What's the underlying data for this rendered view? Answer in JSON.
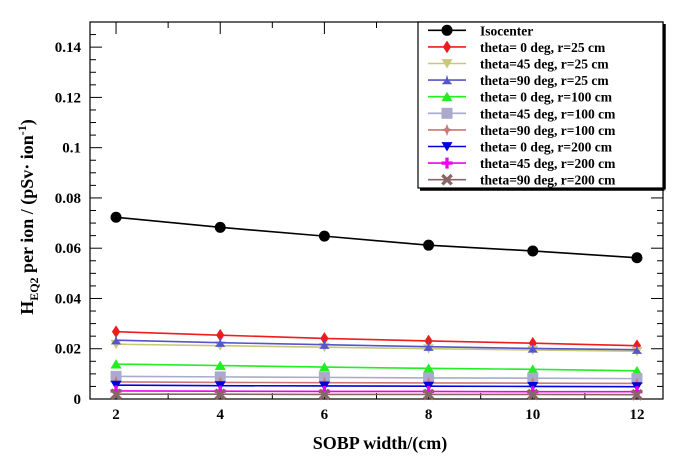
{
  "chart_data": {
    "type": "line",
    "xlabel": "SOBP width/(cm)",
    "ylabel": {
      "prefix": "H",
      "subscript": "EQ2",
      "middle": " per ion / (pSv",
      "dot": "·",
      "unit": " ion",
      "superscript": "-1",
      "suffix": ")"
    },
    "xlim": [
      1.5,
      12.5
    ],
    "ylim": [
      0,
      0.15
    ],
    "x_ticks": [
      "2",
      "4",
      "6",
      "8",
      "10",
      "12"
    ],
    "y_ticks": [
      "0",
      "0.02",
      "0.04",
      "0.06",
      "0.08",
      "0.1",
      "0.12",
      "0.14"
    ],
    "grid": false,
    "legend_position": "top-right",
    "x": [
      2,
      4,
      6,
      8,
      10,
      12
    ],
    "series": [
      {
        "name": "Isocenter",
        "color": "#000000",
        "marker": "circle",
        "values": [
          0.0723,
          0.0683,
          0.0648,
          0.0612,
          0.0589,
          0.0562
        ]
      },
      {
        "name": "theta= 0 deg, r=25 cm",
        "color": "#ee1c1c",
        "marker": "diamond",
        "values": [
          0.0268,
          0.0254,
          0.0241,
          0.0231,
          0.0222,
          0.0212
        ]
      },
      {
        "name": "theta=45 deg, r=25 cm",
        "color": "#c8c878",
        "marker": "triangle-down",
        "values": [
          0.0218,
          0.0212,
          0.0206,
          0.02,
          0.0195,
          0.019
        ]
      },
      {
        "name": "theta=90 deg, r=25 cm",
        "color": "#5555cc",
        "marker": "tristar",
        "values": [
          0.0234,
          0.0224,
          0.0216,
          0.0208,
          0.0201,
          0.0196
        ]
      },
      {
        "name": "theta= 0 deg, r=100 cm",
        "color": "#22ee22",
        "marker": "triangle-up",
        "values": [
          0.0139,
          0.0133,
          0.0127,
          0.0122,
          0.0118,
          0.0112
        ]
      },
      {
        "name": "theta=45 deg, r=100 cm",
        "color": "#aaaacc",
        "marker": "square",
        "values": [
          0.009,
          0.0088,
          0.0086,
          0.0084,
          0.0083,
          0.0081
        ]
      },
      {
        "name": "theta=90 deg, r=100 cm",
        "color": "#cc7777",
        "marker": "diamond-star",
        "values": [
          0.0068,
          0.0066,
          0.0065,
          0.0064,
          0.0063,
          0.0062
        ]
      },
      {
        "name": "theta= 0 deg, r=200 cm",
        "color": "#0000dd",
        "marker": "triangle-down",
        "values": [
          0.0055,
          0.0053,
          0.0052,
          0.0051,
          0.005,
          0.0049
        ]
      },
      {
        "name": "theta=45 deg, r=200 cm",
        "color": "#ee00ee",
        "marker": "cross",
        "values": [
          0.0032,
          0.0031,
          0.003,
          0.003,
          0.0029,
          0.0029
        ]
      },
      {
        "name": "theta=90 deg, r=200 cm",
        "color": "#886666",
        "marker": "x",
        "values": [
          0.0019,
          0.0019,
          0.0018,
          0.0018,
          0.0018,
          0.0017
        ]
      }
    ]
  }
}
